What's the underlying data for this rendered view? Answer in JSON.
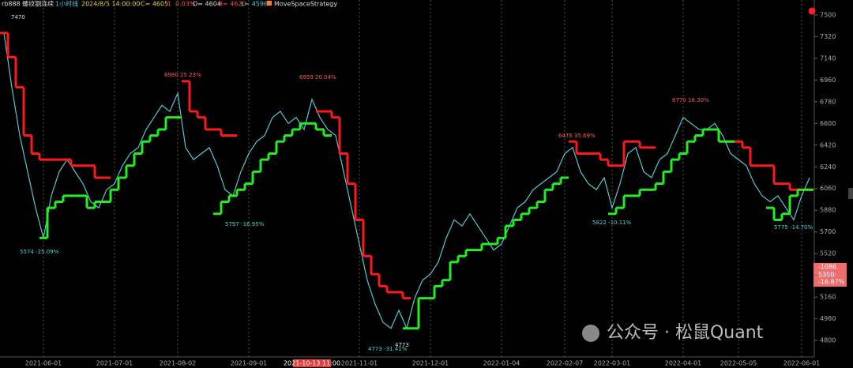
{
  "header": {
    "symbol": "rb888 螺纹钢连续",
    "period": "1小时线",
    "datetime": "2024/8/5 14:00:00",
    "close": "C= 4605",
    "change": "1",
    "change_pct": "0.03%",
    "open": "O= 4604",
    "high": "H= 4620",
    "low": "L= 4596",
    "strategy": "MoveSpaceStrategy"
  },
  "price_box": [
    "-1086",
    "5350",
    "-16.87%"
  ],
  "watermark": "公众号 · 松鼠Quant",
  "chart_data": {
    "type": "line",
    "categories": [
      null,
      null,
      null,
      null,
      null,
      "2021-06-01",
      null,
      null,
      null,
      null,
      null,
      null,
      null,
      null,
      "2021-07-01",
      null,
      null,
      null,
      null,
      null,
      null,
      null,
      "2021-08-02",
      null,
      null,
      null,
      null,
      null,
      null,
      null,
      null,
      "2021-09-01",
      null,
      null,
      null,
      null,
      null,
      null,
      null,
      null,
      null,
      null,
      null,
      null,
      null,
      "2021-11-01",
      null,
      null,
      null,
      null,
      null,
      null,
      null,
      null,
      "2021-12-01",
      null,
      null,
      null,
      null,
      null,
      null,
      null,
      null,
      "2022-01-04",
      null,
      null,
      null,
      null,
      null,
      null,
      null,
      "2022-02-07",
      null,
      null,
      null,
      null,
      null,
      "2022-03-01",
      null,
      null,
      null,
      null,
      null,
      null,
      null,
      null,
      "2022-04-01",
      null,
      null,
      null,
      null,
      null,
      null,
      "2022-05-05",
      null,
      null,
      null,
      null,
      null,
      null,
      null,
      "2022-06-01",
      null
    ],
    "cursor_label": "2021-10-13 11:00",
    "series": [
      {
        "color": "#55c8d2",
        "values": [
          7350,
          6900,
          6500,
          6200,
          5900,
          5650,
          6000,
          6200,
          6300,
          6200,
          6100,
          5950,
          5900,
          6050,
          6100,
          6250,
          6350,
          6400,
          6550,
          6650,
          6750,
          6700,
          6850,
          6400,
          6300,
          6350,
          6400,
          6250,
          6050,
          6000,
          6200,
          6350,
          6450,
          6500,
          6650,
          6700,
          6600,
          6650,
          6550,
          6800,
          6650,
          6550,
          6500,
          6200,
          5900,
          5600,
          5300,
          5100,
          4950,
          4900,
          5050,
          4900,
          5150,
          5300,
          5350,
          5450,
          5650,
          5800,
          5750,
          5850,
          5750,
          5650,
          5550,
          5600,
          5750,
          5900,
          5950,
          6050,
          6100,
          6150,
          6200,
          6350,
          6400,
          6200,
          6100,
          6050,
          6150,
          5900,
          6100,
          6350,
          6400,
          6200,
          6150,
          6300,
          6350,
          6500,
          6650,
          6600,
          6550,
          6550,
          6600,
          6500,
          6350,
          6300,
          6250,
          6100,
          6000,
          5950,
          6000,
          5900,
          5800,
          6000,
          6150
        ]
      },
      {
        "color": "#ff1a1a",
        "values": [
          7350,
          7150,
          6900,
          6500,
          6350,
          6300,
          6300,
          6300,
          6300,
          6250,
          6250,
          6250,
          6150,
          6150,
          null,
          null,
          null,
          null,
          null,
          null,
          null,
          null,
          null,
          6950,
          6700,
          6650,
          6550,
          6550,
          6500,
          6500,
          null,
          null,
          null,
          null,
          null,
          null,
          null,
          null,
          null,
          null,
          6700,
          6700,
          6650,
          6350,
          6100,
          5800,
          5500,
          5350,
          5250,
          5200,
          5200,
          5150,
          null,
          null,
          null,
          null,
          null,
          null,
          null,
          null,
          null,
          null,
          null,
          null,
          null,
          null,
          null,
          null,
          null,
          null,
          null,
          null,
          6450,
          6350,
          6350,
          6350,
          6300,
          6250,
          6250,
          6450,
          6450,
          6400,
          6400,
          null,
          null,
          null,
          null,
          null,
          null,
          null,
          null,
          null,
          6450,
          6450,
          6400,
          6250,
          6250,
          6250,
          6100,
          6100,
          6050,
          6050,
          6050
        ]
      },
      {
        "color": "#22ee22",
        "values": [
          null,
          null,
          null,
          null,
          null,
          5650,
          5900,
          5950,
          6000,
          6000,
          6000,
          5900,
          5950,
          5950,
          6050,
          6150,
          6250,
          6350,
          6450,
          6500,
          6550,
          6650,
          6650,
          null,
          null,
          null,
          null,
          5850,
          5950,
          6000,
          6050,
          6100,
          6200,
          6300,
          6350,
          6450,
          6500,
          6550,
          6600,
          6600,
          6550,
          6500,
          null,
          null,
          null,
          null,
          null,
          null,
          null,
          null,
          null,
          4900,
          4900,
          5150,
          5150,
          5250,
          5300,
          5450,
          5500,
          5550,
          5550,
          5600,
          5600,
          5650,
          5750,
          5800,
          5850,
          5900,
          5950,
          6050,
          6100,
          6150,
          null,
          null,
          null,
          null,
          null,
          5850,
          5900,
          6000,
          6000,
          6050,
          6050,
          6100,
          6200,
          6300,
          6350,
          6450,
          6500,
          6550,
          6550,
          6450,
          6450,
          null,
          null,
          null,
          null,
          5900,
          5800,
          5850,
          6000,
          6050,
          6050
        ]
      }
    ],
    "annotations": [
      "7470",
      "5574 -25.09%",
      "6980 25.23%",
      "5797 -16.95%",
      "6959 20.04%",
      "4773 -31.41%",
      "4773",
      "6476 35.69%",
      "5822 -10.11%",
      "6770 16.30%",
      "5775 -14.70%"
    ],
    "ylim": [
      4676,
      7624
    ],
    "yticks": [
      4800,
      4980,
      5160,
      5340,
      5520,
      5700,
      5880,
      6060,
      6240,
      6420,
      6600,
      6780,
      6960,
      7140,
      7320,
      7500
    ],
    "grid": true
  }
}
